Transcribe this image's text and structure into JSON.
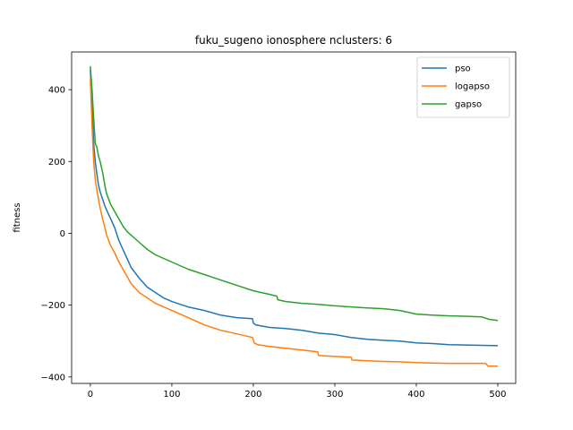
{
  "chart_data": {
    "type": "line",
    "title": "fuku_sugeno ionosphere nclusters: 6",
    "xlabel": "",
    "ylabel": "fitness",
    "xlim": [
      -23,
      522
    ],
    "ylim": [
      -418,
      505
    ],
    "xticks": [
      0,
      100,
      200,
      300,
      400,
      500
    ],
    "yticks": [
      -400,
      -200,
      0,
      200,
      400
    ],
    "grid": false,
    "legend_position": "top-right",
    "series": [
      {
        "name": "pso",
        "color": "#1f77b4",
        "x": [
          0,
          2,
          4,
          6,
          8,
          10,
          12,
          15,
          18,
          20,
          25,
          30,
          35,
          40,
          45,
          50,
          60,
          70,
          80,
          90,
          100,
          120,
          140,
          160,
          180,
          199,
          200,
          203,
          220,
          240,
          260,
          280,
          300,
          320,
          340,
          360,
          380,
          400,
          420,
          440,
          460,
          480,
          500
        ],
        "y": [
          455,
          360,
          250,
          200,
          165,
          135,
          115,
          95,
          75,
          65,
          40,
          15,
          -20,
          -45,
          -70,
          -95,
          -125,
          -150,
          -165,
          -180,
          -190,
          -205,
          -215,
          -228,
          -235,
          -238,
          -250,
          -255,
          -262,
          -265,
          -270,
          -278,
          -282,
          -290,
          -295,
          -298,
          -300,
          -305,
          -307,
          -310,
          -311,
          -312,
          -313
        ]
      },
      {
        "name": "logapso",
        "color": "#ff7f0e",
        "x": [
          0,
          2,
          4,
          6,
          8,
          10,
          12,
          15,
          18,
          20,
          25,
          30,
          35,
          40,
          45,
          50,
          60,
          70,
          80,
          90,
          100,
          120,
          140,
          160,
          180,
          199,
          201,
          205,
          220,
          240,
          260,
          279,
          280,
          300,
          320,
          321,
          340,
          360,
          380,
          400,
          420,
          440,
          460,
          485,
          488,
          500
        ],
        "y": [
          430,
          300,
          200,
          150,
          120,
          95,
          70,
          40,
          15,
          -5,
          -35,
          -55,
          -80,
          -100,
          -120,
          -140,
          -165,
          -180,
          -195,
          -205,
          -215,
          -235,
          -255,
          -270,
          -280,
          -290,
          -305,
          -310,
          -315,
          -320,
          -325,
          -330,
          -340,
          -343,
          -345,
          -353,
          -355,
          -357,
          -358,
          -360,
          -361,
          -362,
          -362,
          -362,
          -370,
          -370
        ]
      },
      {
        "name": "gapso",
        "color": "#2ca02c",
        "x": [
          0,
          2,
          4,
          6,
          8,
          10,
          12,
          15,
          18,
          20,
          25,
          30,
          35,
          40,
          45,
          50,
          60,
          70,
          80,
          90,
          100,
          110,
          120,
          140,
          160,
          180,
          200,
          220,
          229,
          230,
          240,
          260,
          280,
          300,
          320,
          340,
          360,
          380,
          390,
          400,
          420,
          440,
          460,
          480,
          490,
          500
        ],
        "y": [
          465,
          400,
          320,
          250,
          240,
          215,
          200,
          170,
          130,
          110,
          80,
          60,
          40,
          20,
          5,
          -5,
          -25,
          -45,
          -60,
          -70,
          -80,
          -90,
          -100,
          -115,
          -130,
          -145,
          -160,
          -170,
          -175,
          -185,
          -190,
          -195,
          -198,
          -202,
          -205,
          -208,
          -210,
          -215,
          -220,
          -225,
          -228,
          -230,
          -231,
          -233,
          -240,
          -243
        ]
      }
    ]
  }
}
